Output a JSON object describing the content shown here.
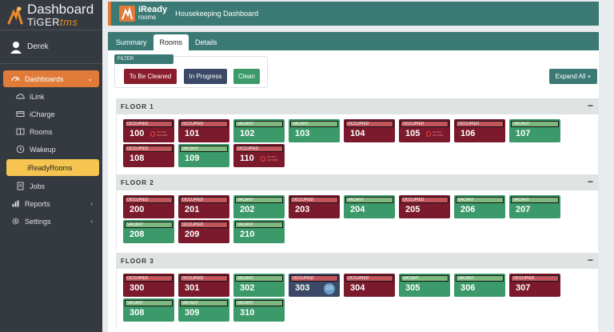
{
  "brand": {
    "title": "Dashboard",
    "sub_a": "TiGER",
    "sub_b": "tms"
  },
  "user": {
    "name": "Derek"
  },
  "nav": {
    "items": [
      {
        "label": "Dashboards",
        "icon": "dashboard-icon"
      },
      {
        "label": "iLink",
        "icon": "cloud-icon"
      },
      {
        "label": "iCharge",
        "icon": "credit-card-icon"
      },
      {
        "label": "Rooms",
        "icon": "rooms-icon"
      },
      {
        "label": "Wakeup",
        "icon": "clock-icon"
      },
      {
        "label": "iReadyRooms"
      },
      {
        "label": "Jobs",
        "icon": "document-icon"
      },
      {
        "label": "Reports",
        "icon": "chart-icon"
      },
      {
        "label": "Settings",
        "icon": "gear-icon"
      }
    ]
  },
  "header": {
    "logo_a": "iReady",
    "logo_b": "rooms",
    "title": "Housekeeping Dashboard"
  },
  "tabs": [
    "Summary",
    "Rooms",
    "Details"
  ],
  "filter": {
    "label": "FILTER",
    "to_be_cleaned": "To Be Cleaned",
    "in_progress": "In Progress",
    "clean": "Clean"
  },
  "expand_all": "Expand All +",
  "colors": {
    "occupied": "#7a1a2c",
    "vacant": "#3c9a6a",
    "in_progress": "#3a4a66",
    "accent": "#e07b39",
    "teal": "#3b7a74"
  },
  "floors": [
    {
      "name": "FLOOR 1",
      "rooms": [
        {
          "num": "100",
          "status": "OCCUPIED",
          "dnd": true
        },
        {
          "num": "101",
          "status": "OCCUPIED"
        },
        {
          "num": "102",
          "status": "VACANT"
        },
        {
          "num": "103",
          "status": "VACANT"
        },
        {
          "num": "104",
          "status": "OCCUPIED"
        },
        {
          "num": "105",
          "status": "OCCUPIED",
          "dnd": true
        },
        {
          "num": "106",
          "status": "OCCUPIED"
        },
        {
          "num": "107",
          "status": "VACANT"
        },
        {
          "num": "108",
          "status": "OCCUPIED"
        },
        {
          "num": "109",
          "status": "VACANT"
        },
        {
          "num": "110",
          "status": "OCCUPIED",
          "dnd": true
        }
      ]
    },
    {
      "name": "FLOOR 2",
      "rooms": [
        {
          "num": "200",
          "status": "OCCUPIED"
        },
        {
          "num": "201",
          "status": "OCCUPIED"
        },
        {
          "num": "202",
          "status": "VACANT"
        },
        {
          "num": "203",
          "status": "OCCUPIED"
        },
        {
          "num": "204",
          "status": "VACANT"
        },
        {
          "num": "205",
          "status": "OCCUPIED"
        },
        {
          "num": "206",
          "status": "VACANT"
        },
        {
          "num": "207",
          "status": "VACANT"
        },
        {
          "num": "208",
          "status": "VACANT"
        },
        {
          "num": "209",
          "status": "OCCUPIED"
        },
        {
          "num": "210",
          "status": "VACANT"
        }
      ]
    },
    {
      "name": "FLOOR 3",
      "rooms": [
        {
          "num": "300",
          "status": "OCCUPIED"
        },
        {
          "num": "301",
          "status": "OCCUPIED"
        },
        {
          "num": "302",
          "status": "VACANT"
        },
        {
          "num": "303",
          "status": "OCCUPIED",
          "cs": true
        },
        {
          "num": "304",
          "status": "OCCUPIED"
        },
        {
          "num": "305",
          "status": "VACANT"
        },
        {
          "num": "306",
          "status": "VACANT"
        },
        {
          "num": "307",
          "status": "OCCUPIED"
        },
        {
          "num": "308",
          "status": "VACANT"
        },
        {
          "num": "309",
          "status": "VACANT"
        },
        {
          "num": "310",
          "status": "VACANT"
        }
      ]
    }
  ],
  "dnd_text": "DO NOT DISTURB",
  "cs_text": "CS"
}
